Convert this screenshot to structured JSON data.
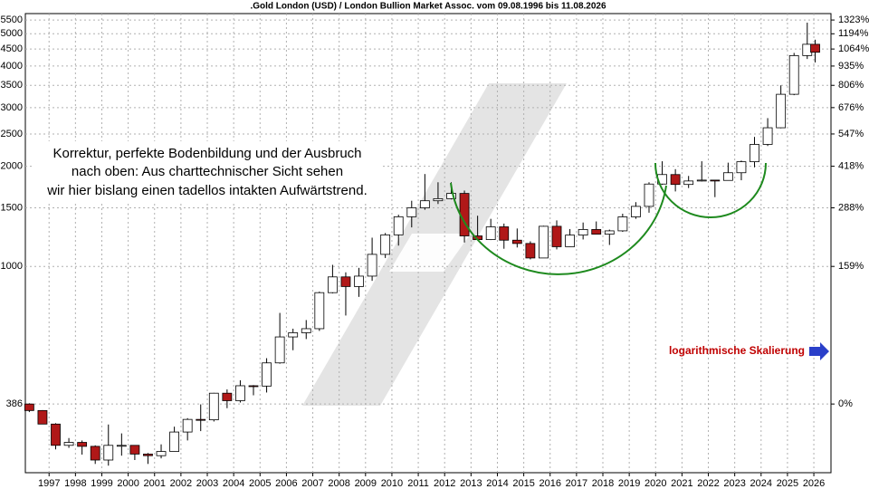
{
  "chart_data": {
    "type": "candlestick",
    "title": ".Gold London (USD) / London Bullion Market Assoc. vom 09.08.1996 bis 11.08.2026",
    "log_scale": true,
    "grid": true,
    "up_color": "#ffffff",
    "down_color": "#b01818",
    "annotations": [
      "Korrektur, perfekte Bodenbildung und der Ausbruch",
      "nach oben: Aus charttechnischer Sicht sehen",
      "wir hier bislang einen tadellos intakten Aufwärtstrend."
    ],
    "scale_note": "logarithmische Skalierung",
    "xlim": [
      1996.6,
      2027.15
    ],
    "ylim": [
      240,
      5750
    ],
    "yticks": [
      386,
      1000,
      1500,
      2000,
      2500,
      3000,
      3500,
      4000,
      4500,
      5000,
      5500
    ],
    "y2ticks": [
      {
        "value": 386,
        "label": "0%"
      },
      {
        "value": 1000,
        "label": "159%"
      },
      {
        "value": 1500,
        "label": "288%"
      },
      {
        "value": 2000,
        "label": "418%"
      },
      {
        "value": 2500,
        "label": "547%"
      },
      {
        "value": 3000,
        "label": "676%"
      },
      {
        "value": 3500,
        "label": "806%"
      },
      {
        "value": 4000,
        "label": "935%"
      },
      {
        "value": 4500,
        "label": "1064%"
      },
      {
        "value": 5000,
        "label": "1194%"
      },
      {
        "value": 5500,
        "label": "1323%"
      }
    ],
    "xticks": [
      {
        "value": 1997.5,
        "label": "1997"
      },
      {
        "value": 1998.5,
        "label": "1998"
      },
      {
        "value": 1999.5,
        "label": "1999"
      },
      {
        "value": 2000.5,
        "label": "2000"
      },
      {
        "value": 2001.5,
        "label": "2001"
      },
      {
        "value": 2002.5,
        "label": "2002"
      },
      {
        "value": 2003.5,
        "label": "2003"
      },
      {
        "value": 2004.5,
        "label": "2004"
      },
      {
        "value": 2005.5,
        "label": "2005"
      },
      {
        "value": 2006.5,
        "label": "2006"
      },
      {
        "value": 2007.5,
        "label": "2007"
      },
      {
        "value": 2008.5,
        "label": "2008"
      },
      {
        "value": 2009.5,
        "label": "2009"
      },
      {
        "value": 2010.5,
        "label": "2010"
      },
      {
        "value": 2011.5,
        "label": "2011"
      },
      {
        "value": 2012.5,
        "label": "2012"
      },
      {
        "value": 2013.5,
        "label": "2013"
      },
      {
        "value": 2014.5,
        "label": "2014"
      },
      {
        "value": 2015.5,
        "label": "2015"
      },
      {
        "value": 2016.5,
        "label": "2016"
      },
      {
        "value": 2017.5,
        "label": "2017"
      },
      {
        "value": 2018.5,
        "label": "2018"
      },
      {
        "value": 2019.5,
        "label": "2019"
      },
      {
        "value": 2020.5,
        "label": "2020"
      },
      {
        "value": 2021.5,
        "label": "2021"
      },
      {
        "value": 2022.5,
        "label": "2022"
      },
      {
        "value": 2023.5,
        "label": "2023"
      },
      {
        "value": 2024.5,
        "label": "2024"
      },
      {
        "value": 2025.5,
        "label": "2025"
      },
      {
        "value": 2026.5,
        "label": "2026"
      }
    ],
    "x": [
      1996.75,
      1997.25,
      1997.75,
      1998.25,
      1998.75,
      1999.25,
      1999.75,
      2000.25,
      2000.75,
      2001.25,
      2001.75,
      2002.25,
      2002.75,
      2003.25,
      2003.75,
      2004.25,
      2004.75,
      2005.25,
      2005.75,
      2006.25,
      2006.75,
      2007.25,
      2007.75,
      2008.25,
      2008.75,
      2009.25,
      2009.75,
      2010.25,
      2010.75,
      2011.25,
      2011.75,
      2012.25,
      2012.75,
      2013.25,
      2013.75,
      2014.25,
      2014.75,
      2015.25,
      2015.75,
      2016.25,
      2016.75,
      2017.25,
      2017.75,
      2018.25,
      2018.75,
      2019.25,
      2019.75,
      2020.25,
      2020.75,
      2021.25,
      2021.75,
      2022.25,
      2022.75,
      2023.25,
      2023.75,
      2024.25,
      2024.75,
      2025.25,
      2025.75,
      2026.25,
      2026.55
    ],
    "open": [
      386,
      369,
      336,
      290,
      296,
      288,
      262,
      290,
      290,
      273,
      270,
      278,
      318,
      347,
      346,
      416,
      395,
      438,
      437,
      513,
      614,
      632,
      650,
      834,
      930,
      870,
      935,
      1087,
      1244,
      1410,
      1500,
      1575,
      1598,
      1657,
      1235,
      1204,
      1315,
      1199,
      1172,
      1060,
      1320,
      1146,
      1242,
      1291,
      1250,
      1279,
      1409,
      1515,
      1768,
      1888,
      1763,
      1806,
      1817,
      1813,
      1912,
      2063,
      2326,
      2610,
      3290,
      4300,
      4650
    ],
    "high": [
      388,
      370,
      338,
      305,
      300,
      290,
      335,
      315,
      290,
      275,
      292,
      330,
      350,
      385,
      417,
      427,
      455,
      440,
      530,
      725,
      650,
      690,
      840,
      1011,
      960,
      990,
      1220,
      1260,
      1430,
      1575,
      1895,
      1790,
      1790,
      1690,
      1420,
      1390,
      1345,
      1300,
      1190,
      1325,
      1375,
      1295,
      1355,
      1365,
      1290,
      1440,
      1560,
      1790,
      2070,
      1960,
      1870,
      2070,
      1820,
      2050,
      2080,
      2450,
      2790,
      3500,
      4380,
      5400,
      4800
    ],
    "low": [
      365,
      336,
      282,
      285,
      272,
      255,
      252,
      270,
      262,
      255,
      265,
      278,
      300,
      320,
      342,
      375,
      390,
      410,
      418,
      510,
      560,
      605,
      640,
      830,
      712,
      810,
      905,
      1060,
      1155,
      1310,
      1480,
      1540,
      1590,
      1180,
      1200,
      1200,
      1130,
      1140,
      1050,
      1060,
      1125,
      1145,
      1205,
      1250,
      1160,
      1270,
      1390,
      1450,
      1760,
      1680,
      1720,
      1800,
      1615,
      1810,
      1815,
      1985,
      2300,
      2600,
      3270,
      4200,
      4100
    ],
    "close": [
      369,
      336,
      290,
      296,
      288,
      262,
      290,
      290,
      273,
      270,
      278,
      318,
      347,
      346,
      416,
      395,
      438,
      437,
      513,
      614,
      632,
      650,
      834,
      930,
      870,
      935,
      1087,
      1244,
      1410,
      1500,
      1575,
      1598,
      1657,
      1235,
      1204,
      1315,
      1199,
      1172,
      1060,
      1320,
      1146,
      1242,
      1291,
      1250,
      1279,
      1409,
      1515,
      1768,
      1888,
      1763,
      1806,
      1817,
      1813,
      1912,
      2063,
      2326,
      2610,
      3290,
      4300,
      4650,
      4400
    ]
  }
}
